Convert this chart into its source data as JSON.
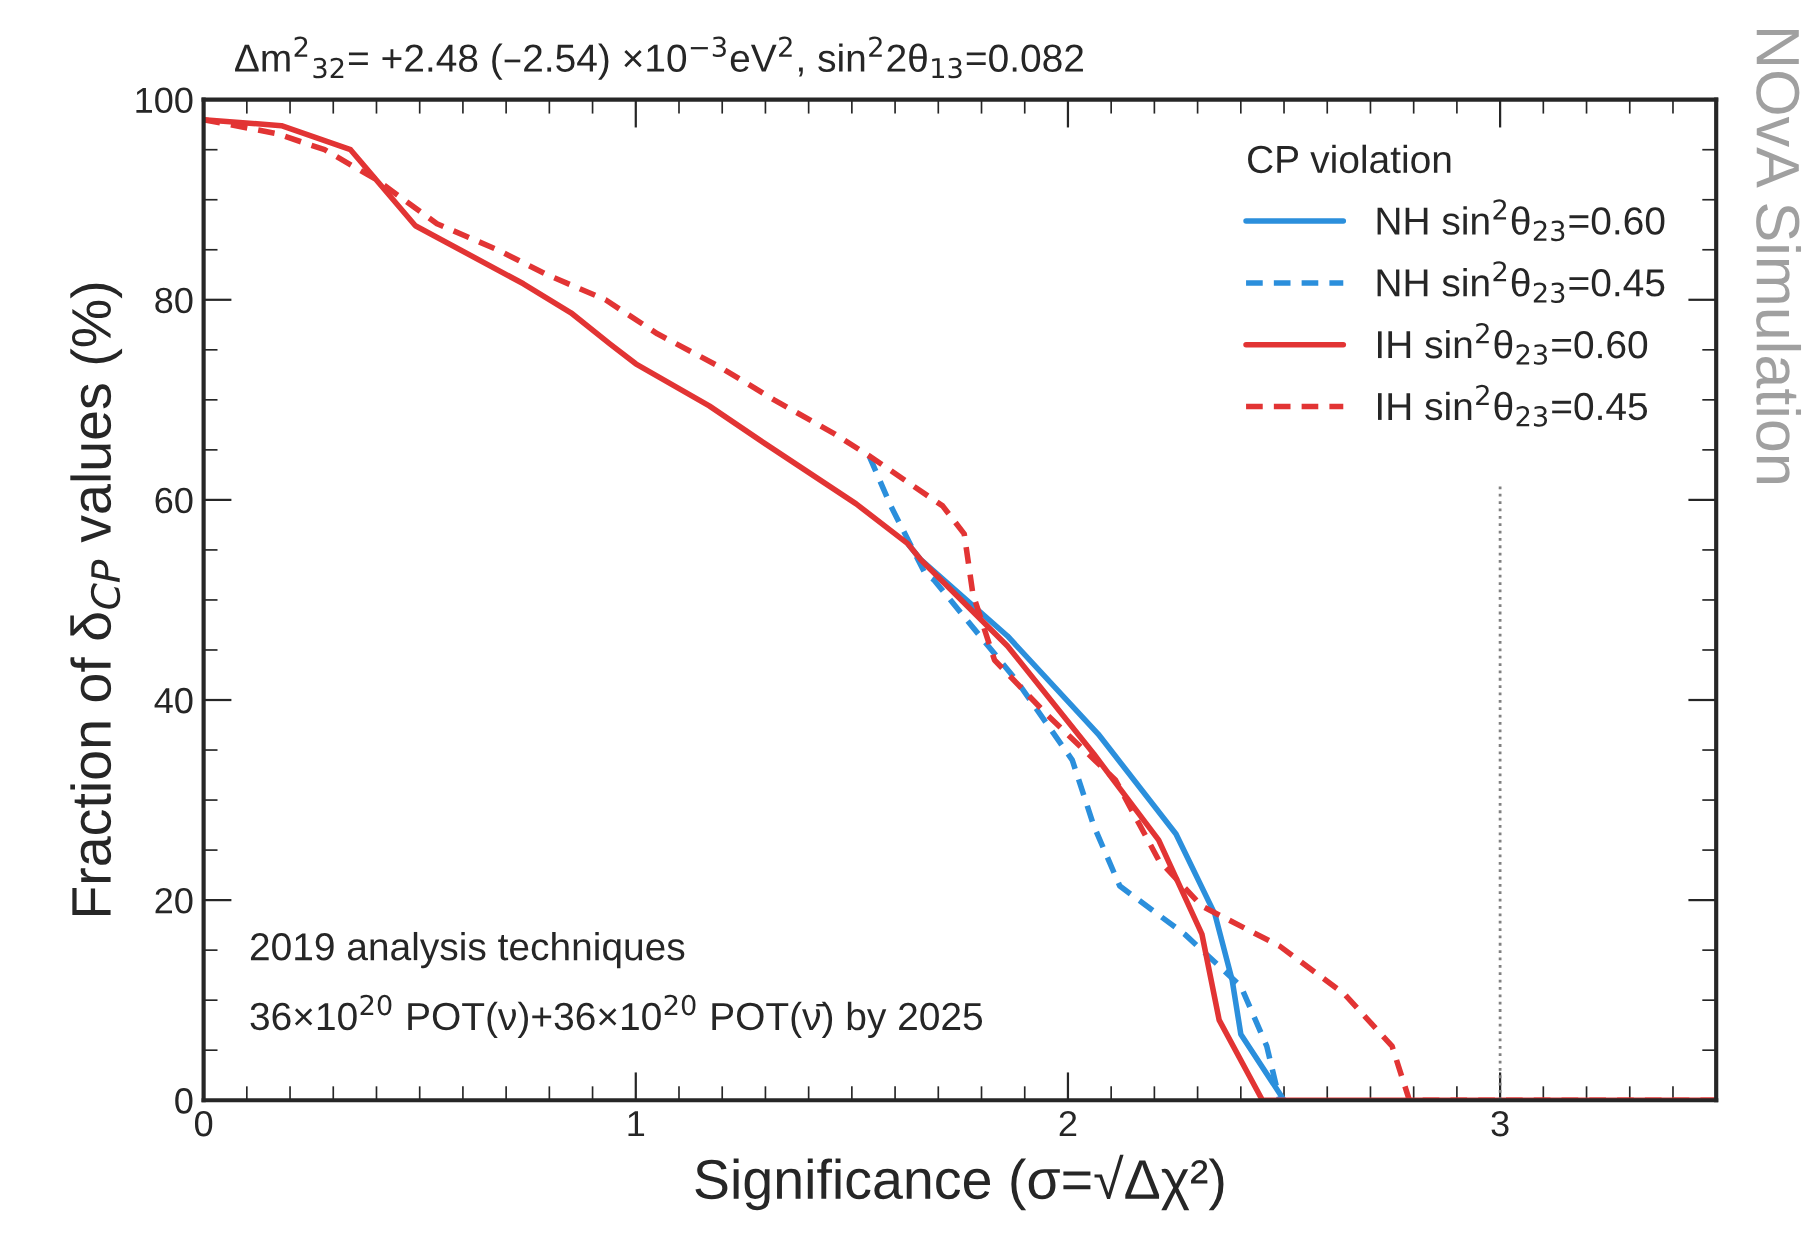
{
  "chart_data": {
    "type": "line",
    "title": "Δm$^{2}$$_{32}$= +2.48 (–2.54) ×10$^{−3}$eV$^{2}$, sin$^{2}$2θ$_{13}$=0.082",
    "xlabel": "Significance (σ=√Δχ²)",
    "ylabel": "Fraction of δ$_{CP}$ values (%)",
    "legend_title": "CP violation",
    "legend": "top right",
    "grid": false,
    "xlim": [
      0,
      3.5
    ],
    "xticks": [
      0,
      1,
      2,
      3
    ],
    "ylim": [
      0,
      100
    ],
    "yticks": [
      0,
      20,
      40,
      60,
      80,
      100
    ],
    "ref_lines": [
      {
        "axis": "x",
        "value": 3,
        "color": "#808080",
        "line_style": "dotted"
      }
    ],
    "annotations": [
      "2019 analysis techniques",
      "36×10$^{20}$ POT(ν)+36×10$^{20}$ POT(ν̄) by 2025",
      "NOvA Simulation"
    ],
    "series": [
      {
        "name": "NH sin$^{2}$θ$_{23}$=0.60",
        "color": "#2b8fdc",
        "line_style": "solid",
        "x": [
          1.63,
          1.66,
          1.86,
          2.07,
          2.25,
          2.34,
          2.38,
          2.4,
          2.5
        ],
        "values": [
          55.6,
          54,
          46.4,
          36.6,
          26.6,
          18.6,
          12,
          6.6,
          0
        ]
      },
      {
        "name": "NH sin$^{2}$θ$_{23}$=0.45",
        "color": "#2b8fdc",
        "line_style": "dashed",
        "x": [
          1.54,
          1.59,
          1.67,
          1.69,
          1.88,
          2.01,
          2.06,
          2.12,
          2.27,
          2.4,
          2.46,
          2.49
        ],
        "values": [
          64.4,
          59.4,
          52.6,
          52,
          42,
          34,
          27.4,
          21.4,
          16.6,
          11.4,
          5.4,
          0
        ]
      },
      {
        "name": "IH sin$^{2}$θ$_{23}$=0.60",
        "color": "#e23434",
        "line_style": "solid",
        "x": [
          0,
          0.18,
          0.34,
          0.49,
          0.74,
          0.85,
          0.94,
          1.0,
          1.17,
          1.3,
          1.51,
          1.63,
          1.66,
          1.86,
          2.06,
          2.21,
          2.31,
          2.35,
          2.45,
          3.5
        ],
        "values": [
          98,
          97.4,
          95,
          87.4,
          81.6,
          78.7,
          75.6,
          73.6,
          69.4,
          65.6,
          59.6,
          55.6,
          54,
          45.4,
          34.6,
          26,
          16.6,
          8,
          0,
          0
        ]
      },
      {
        "name": "IH sin$^{2}$θ$_{23}$=0.45",
        "color": "#e23434",
        "line_style": "dashed",
        "x": [
          0,
          0.17,
          0.28,
          0.4,
          0.54,
          0.68,
          0.79,
          0.93,
          1.05,
          1.19,
          1.32,
          1.46,
          1.54,
          1.71,
          1.76,
          1.78,
          1.83,
          1.95,
          2.11,
          2.21,
          2.31,
          2.49,
          2.64,
          2.75,
          2.79,
          3.5
        ],
        "values": [
          98,
          96.6,
          95,
          92,
          87.6,
          85,
          82.6,
          80,
          76.6,
          73.4,
          70,
          66.6,
          64.4,
          59.4,
          56.6,
          50.6,
          44,
          38.6,
          32,
          24,
          19.4,
          15.4,
          10.6,
          5.4,
          0,
          0
        ]
      }
    ]
  }
}
